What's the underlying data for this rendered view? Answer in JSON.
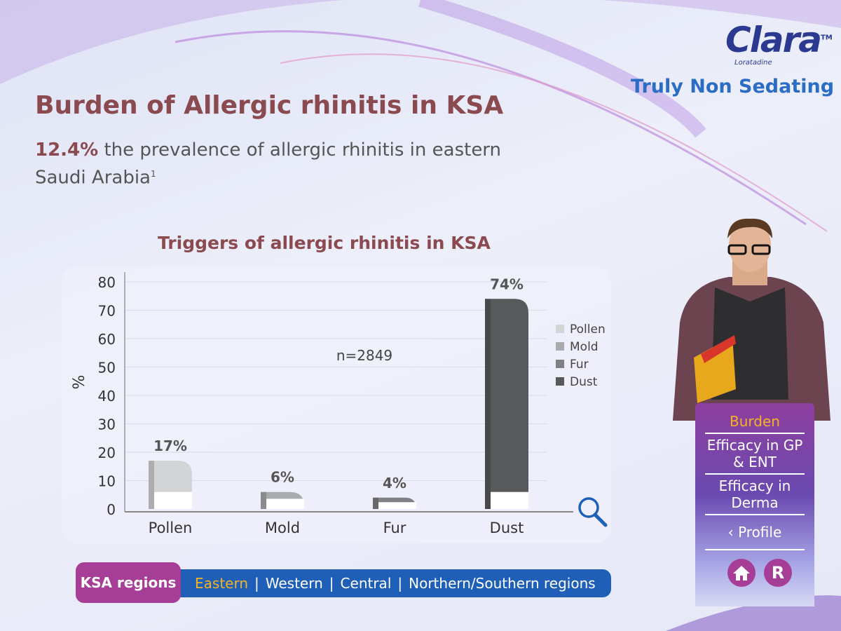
{
  "brand": {
    "name": "Clara",
    "tm": "TM",
    "generic": "Loratadine",
    "tagline": "Truly Non Sedating"
  },
  "header": {
    "title": "Burden of Allergic rhinitis in KSA",
    "highlight": "12.4%",
    "subtitle": " the prevalence of allergic rhinitis in eastern Saudi Arabia",
    "footnote": "1"
  },
  "chart_data": {
    "type": "bar",
    "title": "Triggers of allergic rhinitis in KSA",
    "ylabel": "%",
    "ylim": [
      0,
      80
    ],
    "yticks": [
      0,
      10,
      20,
      30,
      40,
      50,
      60,
      70,
      80
    ],
    "grid": true,
    "categories": [
      "Pollen",
      "Mold",
      "Fur",
      "Dust"
    ],
    "values": [
      17,
      6,
      4,
      74
    ],
    "data_labels": [
      "17%",
      "6%",
      "4%",
      "74%"
    ],
    "colors": [
      "#d3d4d6",
      "#a9aaad",
      "#808184",
      "#58595b"
    ],
    "legend": [
      "Pollen",
      "Mold",
      "Fur",
      "Dust"
    ],
    "legend_position": "right",
    "annotation": "n=2849"
  },
  "regions": {
    "label": "KSA regions",
    "items": [
      "Eastern",
      "Western",
      "Central",
      "Northern/Southern regions"
    ],
    "active": "Eastern"
  },
  "nav": {
    "items": [
      "Burden",
      "Efficacy in GP & ENT",
      "Efficacy in Derma",
      "Profile"
    ],
    "active": "Burden",
    "home_icon": "home-icon",
    "r_label": "R"
  },
  "icons": {
    "zoom": "magnifier-icon"
  }
}
